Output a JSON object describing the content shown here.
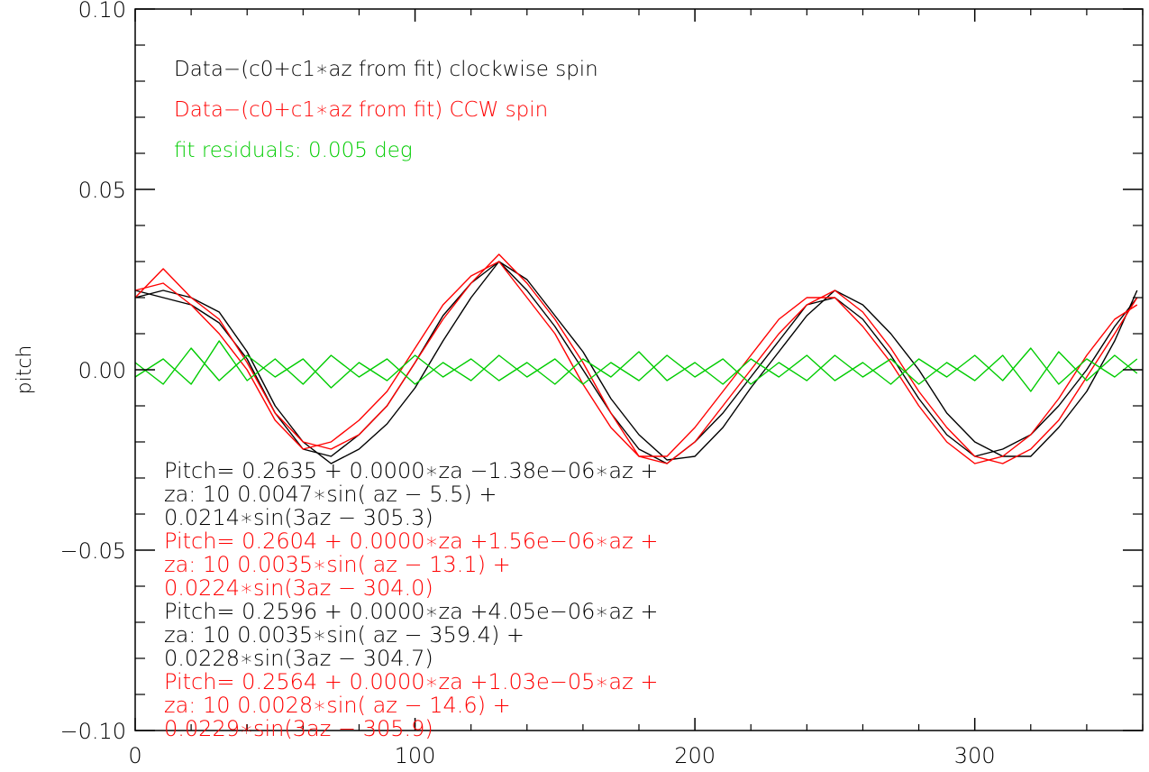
{
  "chart_data": {
    "type": "line",
    "title": "",
    "xlabel": "",
    "ylabel": "pitch",
    "xlim": [
      0,
      360
    ],
    "ylim": [
      -0.1,
      0.1
    ],
    "x_ticks": [
      0,
      100,
      200,
      300
    ],
    "x_tick_labels": [
      "0",
      "100",
      "200",
      "300"
    ],
    "y_ticks": [
      -0.1,
      -0.05,
      0.0,
      0.05,
      0.1
    ],
    "y_tick_labels": [
      "−0.10",
      "−0.05",
      "0.00",
      "0.05",
      "0.10"
    ],
    "grid": false,
    "colors": {
      "cw": "#000000",
      "ccw": "#ff0000",
      "residual": "#00cc00"
    },
    "annotations": [
      {
        "text": "Data−(c0+c1∗az from fit) clockwise spin",
        "color": "#000000"
      },
      {
        "text": "Data−(c0+c1∗az from fit) CCW spin",
        "color": "#ff0000"
      },
      {
        "text": "fit residuals: 0.005 deg",
        "color": "#00cc00"
      }
    ],
    "fit_equations": [
      {
        "color": "#000000",
        "lines": [
          "Pitch= 0.2635  + 0.0000∗za  −1.38e−06∗az +",
          "za: 10 0.0047∗sin( az −   5.5) +",
          "       0.0214∗sin(3az − 305.3)"
        ]
      },
      {
        "color": "#ff0000",
        "lines": [
          "Pitch= 0.2604  + 0.0000∗za  +1.56e−06∗az +",
          "za: 10 0.0035∗sin( az −  13.1) +",
          "       0.0224∗sin(3az − 304.0)"
        ]
      },
      {
        "color": "#000000",
        "lines": [
          "Pitch= 0.2596  + 0.0000∗za  +4.05e−06∗az +",
          "za: 10 0.0035∗sin( az − 359.4) +",
          "       0.0228∗sin(3az − 304.7)"
        ]
      },
      {
        "color": "#ff0000",
        "lines": [
          "Pitch= 0.2564  + 0.0000∗za  +1.03e−05∗az +",
          "za: 10 0.0028∗sin( az −  14.6) +",
          "       0.0229∗sin(3az − 305.9)"
        ]
      }
    ],
    "series": [
      {
        "color": "#000000",
        "x": [
          0,
          10,
          20,
          30,
          40,
          50,
          60,
          70,
          80,
          90,
          100,
          110,
          120,
          130,
          140,
          150,
          160,
          170,
          180,
          190,
          200,
          210,
          220,
          230,
          240,
          250,
          260,
          270,
          280,
          290,
          300,
          310,
          320,
          330,
          340,
          350,
          358
        ],
        "y": [
          0.02,
          0.022,
          0.02,
          0.016,
          0.005,
          -0.01,
          -0.02,
          -0.026,
          -0.022,
          -0.015,
          -0.005,
          0.008,
          0.02,
          0.03,
          0.025,
          0.015,
          0.005,
          -0.008,
          -0.018,
          -0.025,
          -0.024,
          -0.016,
          -0.005,
          0.005,
          0.015,
          0.022,
          0.018,
          0.01,
          0.0,
          -0.012,
          -0.02,
          -0.024,
          -0.024,
          -0.016,
          -0.006,
          0.008,
          0.022
        ]
      },
      {
        "color": "#000000",
        "x": [
          0,
          10,
          20,
          30,
          40,
          50,
          60,
          70,
          80,
          90,
          100,
          110,
          120,
          130,
          140,
          150,
          160,
          170,
          180,
          190,
          200,
          210,
          220,
          230,
          240,
          250,
          260,
          270,
          280,
          290,
          300,
          310,
          320,
          330,
          340,
          350,
          358
        ],
        "y": [
          0.022,
          0.02,
          0.018,
          0.013,
          0.003,
          -0.012,
          -0.022,
          -0.024,
          -0.018,
          -0.01,
          0.002,
          0.015,
          0.024,
          0.03,
          0.022,
          0.012,
          0.0,
          -0.012,
          -0.022,
          -0.026,
          -0.02,
          -0.012,
          -0.002,
          0.008,
          0.018,
          0.02,
          0.014,
          0.004,
          -0.008,
          -0.018,
          -0.024,
          -0.022,
          -0.018,
          -0.01,
          0.0,
          0.012,
          0.02
        ]
      },
      {
        "color": "#ff0000",
        "x": [
          0,
          10,
          20,
          30,
          40,
          50,
          60,
          70,
          80,
          90,
          100,
          110,
          120,
          130,
          140,
          150,
          160,
          170,
          180,
          190,
          200,
          210,
          220,
          230,
          240,
          250,
          260,
          270,
          280,
          290,
          300,
          310,
          320,
          330,
          340,
          350,
          358
        ],
        "y": [
          0.02,
          0.028,
          0.02,
          0.014,
          0.002,
          -0.012,
          -0.02,
          -0.022,
          -0.018,
          -0.01,
          0.002,
          0.014,
          0.024,
          0.032,
          0.024,
          0.014,
          0.002,
          -0.012,
          -0.024,
          -0.026,
          -0.02,
          -0.01,
          0.0,
          0.01,
          0.018,
          0.022,
          0.016,
          0.006,
          -0.006,
          -0.016,
          -0.024,
          -0.026,
          -0.022,
          -0.014,
          -0.002,
          0.01,
          0.02
        ]
      },
      {
        "color": "#ff0000",
        "x": [
          0,
          10,
          20,
          30,
          40,
          50,
          60,
          70,
          80,
          90,
          100,
          110,
          120,
          130,
          140,
          150,
          160,
          170,
          180,
          190,
          200,
          210,
          220,
          230,
          240,
          250,
          260,
          270,
          280,
          290,
          300,
          310,
          320,
          330,
          340,
          350,
          358
        ],
        "y": [
          0.022,
          0.024,
          0.018,
          0.01,
          0.0,
          -0.014,
          -0.022,
          -0.02,
          -0.014,
          -0.006,
          0.006,
          0.018,
          0.026,
          0.03,
          0.02,
          0.01,
          -0.004,
          -0.016,
          -0.024,
          -0.024,
          -0.016,
          -0.006,
          0.004,
          0.014,
          0.02,
          0.02,
          0.012,
          0.002,
          -0.01,
          -0.02,
          -0.026,
          -0.024,
          -0.018,
          -0.008,
          0.004,
          0.014,
          0.018
        ]
      },
      {
        "color": "#00cc00",
        "x": [
          0,
          10,
          20,
          30,
          40,
          50,
          60,
          70,
          80,
          90,
          100,
          110,
          120,
          130,
          140,
          150,
          160,
          170,
          180,
          190,
          200,
          210,
          220,
          230,
          240,
          250,
          260,
          270,
          280,
          290,
          300,
          310,
          320,
          330,
          340,
          350,
          358
        ],
        "y": [
          0.002,
          -0.004,
          0.006,
          -0.003,
          0.004,
          -0.002,
          0.003,
          -0.005,
          0.002,
          -0.003,
          0.004,
          -0.002,
          0.003,
          -0.003,
          0.002,
          -0.004,
          0.003,
          -0.002,
          0.005,
          -0.003,
          0.002,
          -0.004,
          0.003,
          -0.002,
          0.004,
          -0.003,
          0.002,
          -0.004,
          0.003,
          -0.002,
          0.004,
          -0.003,
          0.006,
          -0.004,
          0.003,
          -0.002,
          0.003
        ]
      },
      {
        "color": "#00cc00",
        "x": [
          0,
          10,
          20,
          30,
          40,
          50,
          60,
          70,
          80,
          90,
          100,
          110,
          120,
          130,
          140,
          150,
          160,
          170,
          180,
          190,
          200,
          210,
          220,
          230,
          240,
          250,
          260,
          270,
          280,
          290,
          300,
          310,
          320,
          330,
          340,
          350,
          358
        ],
        "y": [
          -0.002,
          0.003,
          -0.004,
          0.008,
          -0.003,
          0.003,
          -0.004,
          0.004,
          -0.002,
          0.003,
          -0.004,
          0.002,
          -0.003,
          0.004,
          -0.002,
          0.003,
          -0.004,
          0.002,
          -0.003,
          0.004,
          -0.002,
          0.003,
          -0.004,
          0.002,
          -0.003,
          0.004,
          -0.002,
          0.003,
          -0.004,
          0.002,
          -0.003,
          0.004,
          -0.006,
          0.005,
          -0.003,
          0.004,
          -0.001
        ]
      }
    ]
  }
}
